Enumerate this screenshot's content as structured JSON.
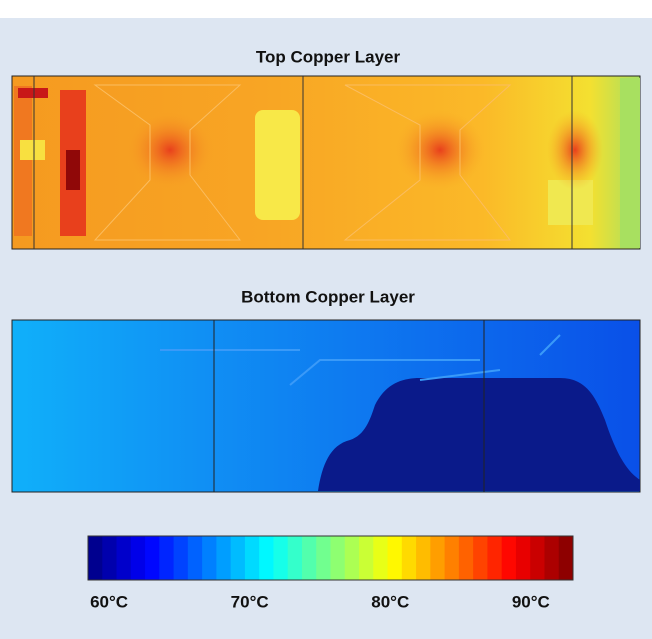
{
  "panels": [
    {
      "title": "Top Copper Layer"
    },
    {
      "title": "Bottom Copper Layer"
    }
  ],
  "colorbar": {
    "range": [
      58.5,
      93
    ],
    "ticks": [
      {
        "value": 60,
        "label": "60°C"
      },
      {
        "value": 70,
        "label": "70°C"
      },
      {
        "value": 80,
        "label": "80°C"
      },
      {
        "value": 90,
        "label": "90°C"
      }
    ]
  }
}
